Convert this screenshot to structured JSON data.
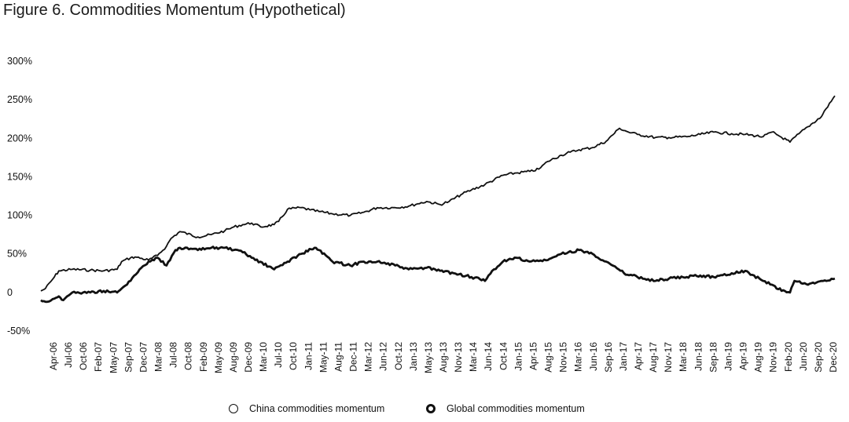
{
  "title": "Figure 6. Commodities Momentum (Hypothetical)",
  "chart_data": {
    "type": "line",
    "title": "Figure 6. Commodities Momentum (Hypothetical)",
    "ylim": [
      -50,
      300
    ],
    "y_ticks": [
      {
        "value": 300,
        "label": "300%"
      },
      {
        "value": 250,
        "label": "250%"
      },
      {
        "value": 200,
        "label": "200%"
      },
      {
        "value": 150,
        "label": "150%"
      },
      {
        "value": 100,
        "label": "100%"
      },
      {
        "value": 50,
        "label": "50%"
      },
      {
        "value": 0,
        "label": "0"
      },
      {
        "value": -50,
        "label": "-50%"
      }
    ],
    "x_tick_labels": [
      "Apr-06",
      "Jul-06",
      "Oct-06",
      "Feb-07",
      "May-07",
      "Sep-07",
      "Dec-07",
      "Mar-08",
      "Jul-08",
      "Oct-08",
      "Feb-09",
      "May-09",
      "Aug-09",
      "Dec-09",
      "Mar-10",
      "Jul-10",
      "Oct-10",
      "Jan-11",
      "May-11",
      "Aug-11",
      "Dec-11",
      "Mar-12",
      "Jun-12",
      "Oct-12",
      "Jan-13",
      "May-13",
      "Aug-13",
      "Nov-13",
      "Mar-14",
      "Jun-14",
      "Oct-14",
      "Jan-15",
      "Apr-15",
      "Aug-15",
      "Nov-15",
      "Mar-16",
      "Jun-16",
      "Sep-16",
      "Jan-17",
      "Apr-17",
      "Aug-17",
      "Nov-17",
      "Mar-18",
      "Jun-18",
      "Sep-18",
      "Jan-19",
      "Apr-19",
      "Aug-19",
      "Nov-19",
      "Feb-20",
      "Jun-20",
      "Sep-20",
      "Dec-20"
    ],
    "grid": false,
    "legend_position": "bottom",
    "series": [
      {
        "name": "China commodities momentum",
        "color": "#111111",
        "stroke": "thin",
        "x": [
          "Mar-06",
          "Apr-06",
          "Jun-06",
          "Jul-06",
          "Oct-06",
          "Feb-07",
          "May-07",
          "Aug-07",
          "Sep-07",
          "Nov-07",
          "Dec-07",
          "Mar-08",
          "May-08",
          "Jul-08",
          "Aug-08",
          "Oct-08",
          "Feb-09",
          "May-09",
          "Aug-09",
          "Oct-09",
          "Dec-09",
          "Feb-10",
          "Apr-10",
          "Jul-10",
          "Aug-10",
          "Oct-10",
          "Jan-11",
          "Mar-11",
          "May-11",
          "Aug-11",
          "Dec-11",
          "Mar-12",
          "Jun-12",
          "Oct-12",
          "Jan-13",
          "Mar-13",
          "May-13",
          "Aug-13",
          "Oct-13",
          "Jan-14",
          "Mar-14",
          "Jun-14",
          "Oct-14",
          "Jan-15",
          "Apr-15",
          "Jun-15",
          "Aug-15",
          "Nov-15",
          "Jan-16",
          "Mar-16",
          "Jun-16",
          "Sep-16",
          "Dec-16",
          "Feb-17",
          "Apr-17",
          "Aug-17",
          "Nov-17",
          "Mar-18",
          "Jun-18",
          "Sep-18",
          "Jan-19",
          "Apr-19",
          "Aug-19",
          "Oct-19",
          "Nov-19",
          "Feb-20",
          "Apr-20",
          "Jun-20",
          "Sep-20",
          "Oct-20",
          "Dec-20"
        ],
        "values": [
          2,
          5,
          20,
          28,
          30,
          29,
          28,
          30,
          40,
          45,
          46,
          42,
          48,
          60,
          70,
          79,
          72,
          75,
          80,
          85,
          88,
          90,
          85,
          88,
          92,
          108,
          110,
          107,
          105,
          102,
          100,
          104,
          110,
          110,
          112,
          115,
          118,
          114,
          118,
          128,
          133,
          140,
          152,
          155,
          157,
          160,
          170,
          178,
          182,
          185,
          188,
          196,
          213,
          208,
          205,
          201,
          201,
          202,
          205,
          208,
          206,
          205,
          202,
          208,
          205,
          195,
          206,
          215,
          228,
          238,
          255
        ]
      },
      {
        "name": "Global commodities momentum",
        "color": "#111111",
        "stroke": "thick",
        "x": [
          "Mar-06",
          "Apr-06",
          "Jun-06",
          "Jul-06",
          "Aug-06",
          "Oct-06",
          "Feb-07",
          "May-07",
          "Aug-07",
          "Sep-07",
          "Nov-07",
          "Jan-08",
          "Mar-08",
          "May-08",
          "Jul-08",
          "Sep-08",
          "Oct-08",
          "Feb-09",
          "May-09",
          "Aug-09",
          "Oct-09",
          "Dec-09",
          "Feb-10",
          "Jul-10",
          "Oct-10",
          "Jan-11",
          "Apr-11",
          "May-11",
          "Aug-11",
          "Dec-11",
          "Mar-12",
          "Jun-12",
          "Oct-12",
          "Jan-13",
          "May-13",
          "Aug-13",
          "Nov-13",
          "Mar-14",
          "Jun-14",
          "Aug-14",
          "Oct-14",
          "Jan-15",
          "Apr-15",
          "Aug-15",
          "Nov-15",
          "Mar-16",
          "Jun-16",
          "Sep-16",
          "Jan-17",
          "Apr-17",
          "Aug-17",
          "Nov-17",
          "Mar-18",
          "Jun-18",
          "Sep-18",
          "Jan-19",
          "Apr-19",
          "Aug-19",
          "Oct-19",
          "Nov-19",
          "Feb-20",
          "Mar-20",
          "Jun-20",
          "Sep-20",
          "Dec-20"
        ],
        "values": [
          -10,
          -12,
          -8,
          -5,
          -10,
          0,
          0,
          2,
          0,
          5,
          15,
          30,
          40,
          45,
          35,
          55,
          58,
          55,
          58,
          58,
          55,
          52,
          45,
          30,
          40,
          50,
          58,
          55,
          40,
          35,
          40,
          40,
          35,
          30,
          32,
          28,
          25,
          20,
          15,
          30,
          40,
          45,
          40,
          42,
          50,
          55,
          50,
          40,
          25,
          20,
          15,
          18,
          20,
          22,
          20,
          25,
          28,
          15,
          10,
          5,
          0,
          15,
          10,
          15,
          18
        ]
      }
    ]
  }
}
